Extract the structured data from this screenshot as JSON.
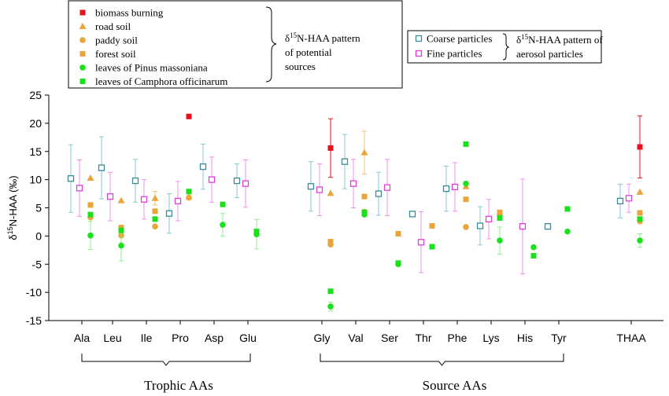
{
  "chart_data": {
    "type": "scatter",
    "ylabel": "δ15N-HAA (‰)",
    "ylim": [
      -15,
      25
    ],
    "yticks": [
      25,
      20,
      15,
      10,
      5,
      0,
      -5,
      -10,
      -15
    ],
    "categories": [
      "Ala",
      "Leu",
      "Ile",
      "Pro",
      "Asp",
      "Glu",
      "Gly",
      "Val",
      "Ser",
      "Thr",
      "Phe",
      "Lys",
      "His",
      "Tyr",
      "THAA"
    ],
    "groups": [
      {
        "name": "Trophic AAs",
        "from": "Ala",
        "to": "Glu"
      },
      {
        "name": "Source AAs",
        "from": "Gly",
        "to": "Tyr"
      }
    ],
    "legend_sources": {
      "caption": "δ15N-HAA pattern of potential sources",
      "items": [
        {
          "name": "biomass burning",
          "marker": "square",
          "color": "#e8121e"
        },
        {
          "name": "road soil",
          "marker": "triangle",
          "color": "#e9a53a"
        },
        {
          "name": "paddy soil",
          "marker": "circle",
          "color": "#e9a53a"
        },
        {
          "name": "forest soil",
          "marker": "square",
          "color": "#e9a53a"
        },
        {
          "name": "leaves of Pinus massoniana",
          "marker": "circle",
          "color": "#19e21c"
        },
        {
          "name": "leaves of Camphora officinarum",
          "marker": "square",
          "color": "#19e21c"
        }
      ]
    },
    "legend_aerosol": {
      "caption": "δ15N-HAA pattern of aerosol particles",
      "items": [
        {
          "name": "Coarse particles",
          "marker": "open-square",
          "color": "#3a8a96"
        },
        {
          "name": "Fine particles",
          "marker": "open-square",
          "color": "#e040d8"
        }
      ]
    },
    "aerosol_series": [
      {
        "name": "Coarse particles",
        "color": "#3a8a96",
        "errcolor": "#86c8d0",
        "points": [
          {
            "cat": "Ala",
            "y": 10.2,
            "err": 6.0
          },
          {
            "cat": "Leu",
            "y": 12.1,
            "err": 5.5
          },
          {
            "cat": "Ile",
            "y": 9.8,
            "err": 3.8
          },
          {
            "cat": "Pro",
            "y": 4.0,
            "err": 3.5
          },
          {
            "cat": "Asp",
            "y": 12.3,
            "err": 4.0
          },
          {
            "cat": "Glu",
            "y": 9.8,
            "err": 3.0
          },
          {
            "cat": "Gly",
            "y": 8.8,
            "err": 4.4
          },
          {
            "cat": "Val",
            "y": 13.2,
            "err": 4.8
          },
          {
            "cat": "Ser",
            "y": 7.5,
            "err": 3.8
          },
          {
            "cat": "Thr",
            "y": 3.9,
            "err": 0
          },
          {
            "cat": "Phe",
            "y": 8.4,
            "err": 4.0
          },
          {
            "cat": "Lys",
            "y": 1.8,
            "err": 3.4
          },
          {
            "cat": "Tyr",
            "y": 1.7,
            "err": 0
          },
          {
            "cat": "THAA",
            "y": 6.2,
            "err": 3.0
          }
        ]
      },
      {
        "name": "Fine particles",
        "color": "#e040d8",
        "errcolor": "#f08ef0",
        "points": [
          {
            "cat": "Ala",
            "y": 8.5,
            "err": 5.0
          },
          {
            "cat": "Leu",
            "y": 7.0,
            "err": 4.3
          },
          {
            "cat": "Ile",
            "y": 6.5,
            "err": 3.5
          },
          {
            "cat": "Pro",
            "y": 6.2,
            "err": 3.5
          },
          {
            "cat": "Asp",
            "y": 10.0,
            "err": 4.0
          },
          {
            "cat": "Glu",
            "y": 9.3,
            "err": 4.2
          },
          {
            "cat": "Gly",
            "y": 8.2,
            "err": 4.6
          },
          {
            "cat": "Val",
            "y": 9.3,
            "err": 4.3
          },
          {
            "cat": "Ser",
            "y": 8.6,
            "err": 5.0
          },
          {
            "cat": "Thr",
            "y": -1.1,
            "err": 5.4
          },
          {
            "cat": "Phe",
            "y": 8.7,
            "err": 4.3
          },
          {
            "cat": "Lys",
            "y": 3.0,
            "err": 3.5
          },
          {
            "cat": "His",
            "y": 1.7,
            "err": 8.4
          },
          {
            "cat": "THAA",
            "y": 6.7,
            "err": 2.5
          }
        ]
      }
    ],
    "source_series": [
      {
        "name": "biomass burning",
        "marker": "square",
        "color": "#e8121e",
        "errcolor": "#e8121e",
        "points": [
          {
            "cat": "Pro",
            "y": 21.2,
            "err": 0
          },
          {
            "cat": "Gly",
            "y": 15.6,
            "err": 5.2
          },
          {
            "cat": "THAA",
            "y": 15.8,
            "err": 5.5
          }
        ]
      },
      {
        "name": "road soil",
        "marker": "triangle",
        "color": "#e9a53a",
        "errcolor": "#f0c070",
        "points": [
          {
            "cat": "Ala",
            "y": 10.3,
            "err": 0
          },
          {
            "cat": "Leu",
            "y": 6.3,
            "err": 0
          },
          {
            "cat": "Ile",
            "y": 6.7,
            "err": 1.2
          },
          {
            "cat": "Pro",
            "y": 7.0,
            "err": 0
          },
          {
            "cat": "Gly",
            "y": 7.6,
            "err": 0
          },
          {
            "cat": "Val",
            "y": 14.8,
            "err": 3.8
          },
          {
            "cat": "Phe",
            "y": 8.8,
            "err": 0
          },
          {
            "cat": "THAA",
            "y": 7.8,
            "err": 0
          }
        ]
      },
      {
        "name": "paddy soil",
        "marker": "circle",
        "color": "#e9a53a",
        "errcolor": "#f0c070",
        "points": [
          {
            "cat": "Ala",
            "y": 3.3,
            "err": 0
          },
          {
            "cat": "Leu",
            "y": 0.1,
            "err": 0
          },
          {
            "cat": "Ile",
            "y": 1.7,
            "err": 0
          },
          {
            "cat": "Pro",
            "y": 6.8,
            "err": 0
          },
          {
            "cat": "Gly",
            "y": -1.5,
            "err": 0
          },
          {
            "cat": "Val",
            "y": 4.3,
            "err": 0
          },
          {
            "cat": "Phe",
            "y": 1.6,
            "err": 0
          },
          {
            "cat": "Lys",
            "y": 3.7,
            "err": 0
          },
          {
            "cat": "THAA",
            "y": 2.6,
            "err": 0
          }
        ]
      },
      {
        "name": "forest soil",
        "marker": "square",
        "color": "#e9a53a",
        "errcolor": "#f0c070",
        "points": [
          {
            "cat": "Ala",
            "y": 5.5,
            "err": 0
          },
          {
            "cat": "Leu",
            "y": 1.5,
            "err": 0
          },
          {
            "cat": "Ile",
            "y": 4.4,
            "err": 0
          },
          {
            "cat": "Gly",
            "y": -1.0,
            "err": 0
          },
          {
            "cat": "Val",
            "y": 7.0,
            "err": 0
          },
          {
            "cat": "Ser",
            "y": 0.4,
            "err": 0
          },
          {
            "cat": "Thr",
            "y": 1.8,
            "err": 0
          },
          {
            "cat": "Phe",
            "y": 6.5,
            "err": 0
          },
          {
            "cat": "Lys",
            "y": 4.2,
            "err": 0
          },
          {
            "cat": "THAA",
            "y": 4.1,
            "err": 0
          }
        ]
      },
      {
        "name": "leaves of Pinus massoniana",
        "marker": "circle",
        "color": "#19e21c",
        "errcolor": "#8ef08e",
        "points": [
          {
            "cat": "Ala",
            "y": 0.1,
            "err": 2.5
          },
          {
            "cat": "Leu",
            "y": -1.7,
            "err": 2.7
          },
          {
            "cat": "Asp",
            "y": 2.0,
            "err": 2.0
          },
          {
            "cat": "Glu",
            "y": 0.3,
            "err": 2.6
          },
          {
            "cat": "Gly",
            "y": -12.5,
            "err": 0.8
          },
          {
            "cat": "Val",
            "y": 3.8,
            "err": 0
          },
          {
            "cat": "Ser",
            "y": -5.0,
            "err": 0
          },
          {
            "cat": "Phe",
            "y": 9.3,
            "err": 0
          },
          {
            "cat": "Lys",
            "y": -0.8,
            "err": 2.4
          },
          {
            "cat": "His",
            "y": -2.0,
            "err": 0
          },
          {
            "cat": "Tyr",
            "y": 0.8,
            "err": 0
          },
          {
            "cat": "THAA",
            "y": -0.8,
            "err": 1.2
          }
        ]
      },
      {
        "name": "leaves of Camphora officinarum",
        "marker": "square",
        "color": "#19e21c",
        "errcolor": "#8ef08e",
        "points": [
          {
            "cat": "Ala",
            "y": 3.8,
            "err": 0
          },
          {
            "cat": "Leu",
            "y": 1.0,
            "err": 0
          },
          {
            "cat": "Ile",
            "y": 3.0,
            "err": 0
          },
          {
            "cat": "Pro",
            "y": 7.9,
            "err": 0
          },
          {
            "cat": "Asp",
            "y": 5.6,
            "err": 0
          },
          {
            "cat": "Glu",
            "y": 0.8,
            "err": 0
          },
          {
            "cat": "Gly",
            "y": -9.8,
            "err": 0
          },
          {
            "cat": "Val",
            "y": 4.2,
            "err": 0
          },
          {
            "cat": "Ser",
            "y": -4.8,
            "err": 0
          },
          {
            "cat": "Thr",
            "y": -1.9,
            "err": 0
          },
          {
            "cat": "Phe",
            "y": 16.3,
            "err": 0
          },
          {
            "cat": "Lys",
            "y": 3.2,
            "err": 0
          },
          {
            "cat": "His",
            "y": -3.5,
            "err": 0
          },
          {
            "cat": "Tyr",
            "y": 4.8,
            "err": 0
          },
          {
            "cat": "THAA",
            "y": 3.0,
            "err": 0
          }
        ]
      }
    ]
  }
}
